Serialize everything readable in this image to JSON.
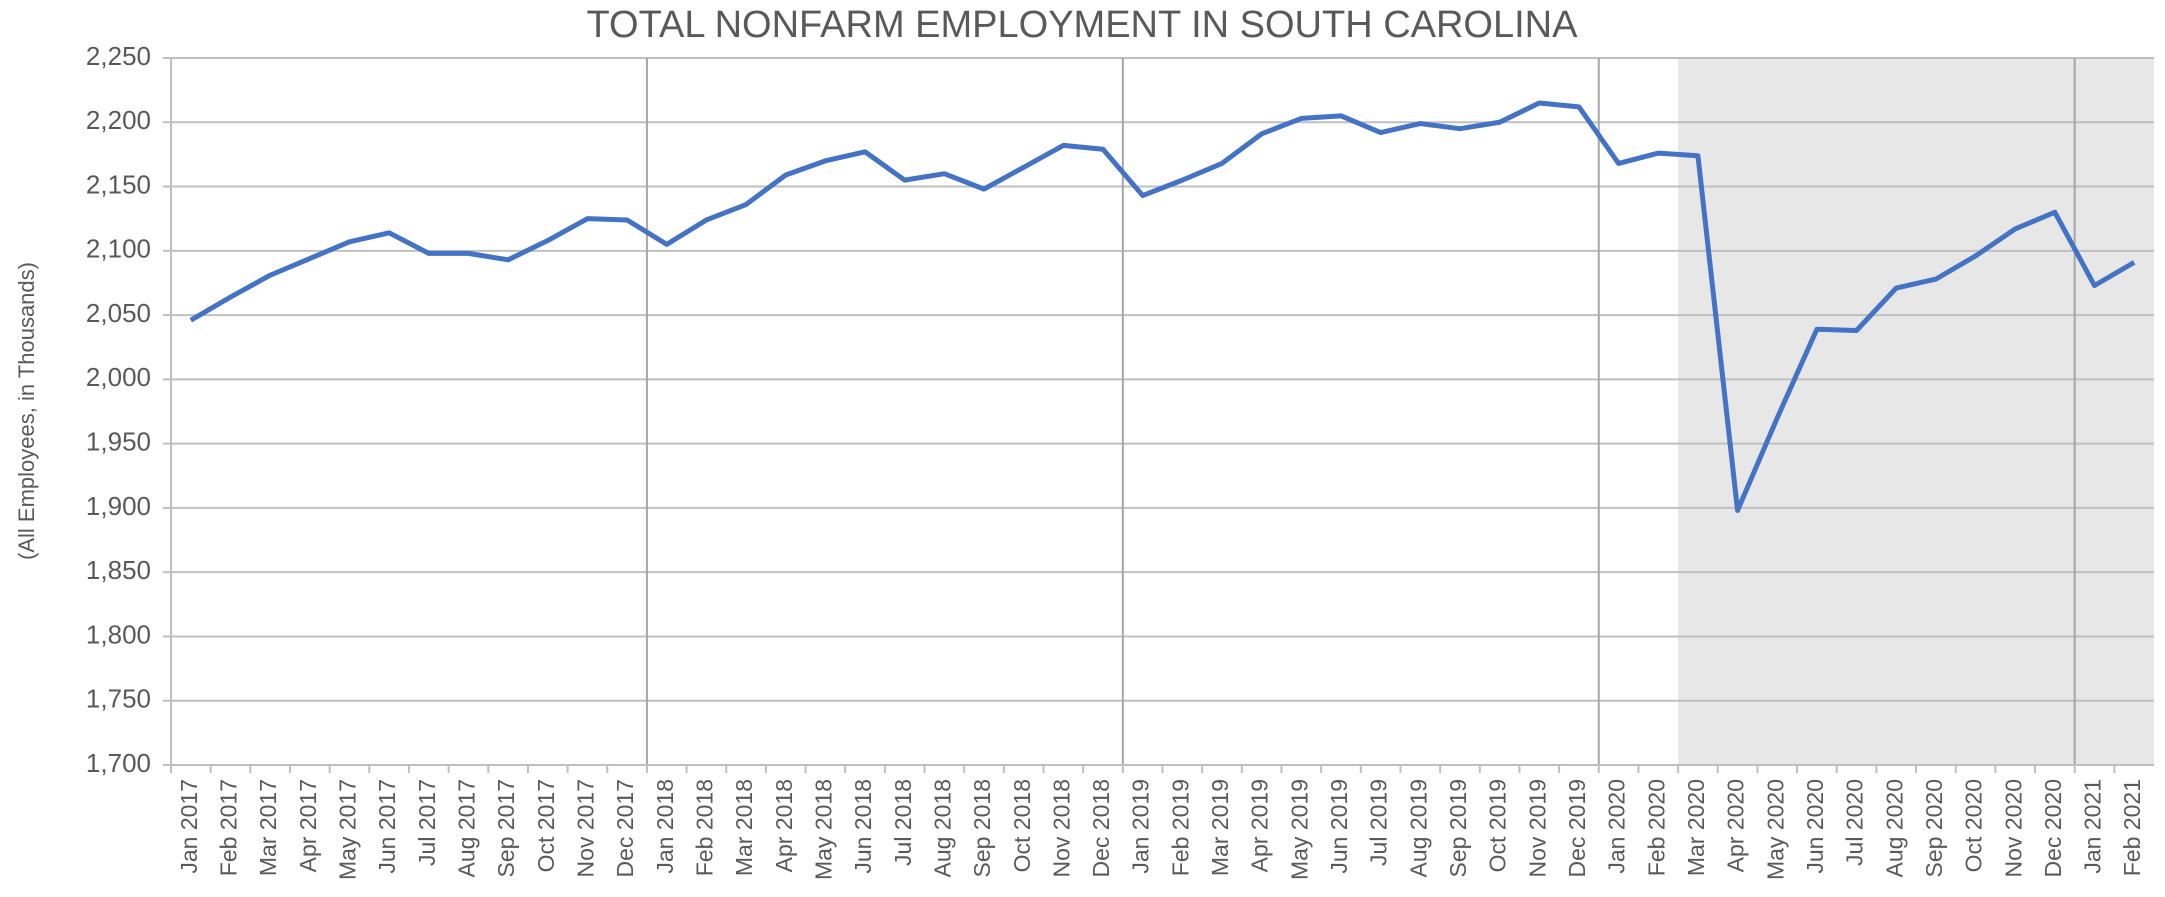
{
  "chart_data": {
    "type": "line",
    "title": "TOTAL NONFARM EMPLOYMENT IN SOUTH CAROLINA",
    "y_label": "(All Employees, in Thousands)",
    "categories": [
      "Jan 2017",
      "Feb 2017",
      "Mar 2017",
      "Apr 2017",
      "May 2017",
      "Jun 2017",
      "Jul 2017",
      "Aug 2017",
      "Sep 2017",
      "Oct 2017",
      "Nov 2017",
      "Dec 2017",
      "Jan 2018",
      "Feb 2018",
      "Mar 2018",
      "Apr 2018",
      "May 2018",
      "Jun 2018",
      "Jul 2018",
      "Aug 2018",
      "Sep 2018",
      "Oct 2018",
      "Nov 2018",
      "Dec 2018",
      "Jan 2019",
      "Feb 2019",
      "Mar 2019",
      "Apr 2019",
      "May 2019",
      "Jun 2019",
      "Jul 2019",
      "Aug 2019",
      "Sep 2019",
      "Oct 2019",
      "Nov 2019",
      "Dec 2019",
      "Jan 2020",
      "Feb 2020",
      "Mar 2020",
      "Apr 2020",
      "May 2020",
      "Jun 2020",
      "Jul 2020",
      "Aug 2020",
      "Sep 2020",
      "Oct 2020",
      "Nov 2020",
      "Dec 2020",
      "Jan 2021",
      "Feb 2021"
    ],
    "series": [
      {
        "name": "Total Nonfarm",
        "color": "#4472c4",
        "values": [
          2046,
          2064,
          2081,
          2094,
          2107,
          2114,
          2098,
          2098,
          2093,
          2108,
          2125,
          2124,
          2105,
          2124,
          2136,
          2159,
          2170,
          2177,
          2155,
          2160,
          2148,
          2165,
          2182,
          2179,
          2143,
          2155,
          2168,
          2191,
          2203,
          2205,
          2192,
          2199,
          2195,
          2200,
          2215,
          2212,
          2168,
          2176,
          2174,
          1898,
          1970,
          2039,
          2038,
          2071,
          2078,
          2096,
          2117,
          2130,
          2073,
          2091
        ]
      }
    ],
    "ylim": [
      1700,
      2250
    ],
    "yticks": [
      {
        "value": 1700,
        "label": "1,700"
      },
      {
        "value": 1750,
        "label": "1,750"
      },
      {
        "value": 1800,
        "label": "1,800"
      },
      {
        "value": 1850,
        "label": "1,850"
      },
      {
        "value": 1900,
        "label": "1,900"
      },
      {
        "value": 1950,
        "label": "1,950"
      },
      {
        "value": 2000,
        "label": "2,000"
      },
      {
        "value": 2050,
        "label": "2,050"
      },
      {
        "value": 2100,
        "label": "2,100"
      },
      {
        "value": 2150,
        "label": "2,150"
      },
      {
        "value": 2200,
        "label": "2,200"
      },
      {
        "value": 2250,
        "label": "2,250"
      }
    ],
    "grid": true,
    "shade_from": "Mar 2020"
  }
}
